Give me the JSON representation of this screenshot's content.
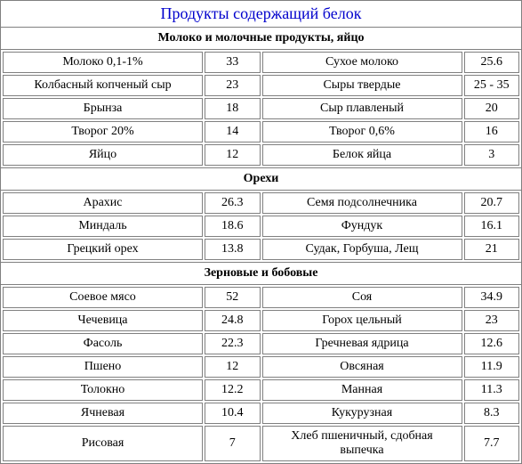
{
  "title": "Продукты содержащий белок",
  "sections": [
    {
      "header": "Молоко и молочные продукты, яйцо",
      "rows": [
        {
          "n1": "Молоко 0,1-1%",
          "v1": "33",
          "n2": "Сухое молоко",
          "v2": "25.6"
        },
        {
          "n1": "Колбасный копченый сыр",
          "v1": "23",
          "n2": "Сыры твердые",
          "v2": "25 - 35"
        },
        {
          "n1": "Брынза",
          "v1": "18",
          "n2": "Сыр плавленый",
          "v2": "20"
        },
        {
          "n1": "Творог 20%",
          "v1": "14",
          "n2": "Творог 0,6%",
          "v2": "16"
        },
        {
          "n1": "Яйцо",
          "v1": "12",
          "n2": "Белок яйца",
          "v2": "3"
        }
      ]
    },
    {
      "header": "Орехи",
      "rows": [
        {
          "n1": "Арахис",
          "v1": "26.3",
          "n2": "Семя подсолнечника",
          "v2": "20.7"
        },
        {
          "n1": "Миндаль",
          "v1": "18.6",
          "n2": "Фундук",
          "v2": "16.1"
        },
        {
          "n1": "Грецкий орех",
          "v1": "13.8",
          "n2": "Судак, Горбуша, Лещ",
          "v2": "21"
        }
      ]
    },
    {
      "header": "Зерновые и бобовые",
      "rows": [
        {
          "n1": "Соевое мясо",
          "v1": "52",
          "n2": "Соя",
          "v2": "34.9"
        },
        {
          "n1": "Чечевица",
          "v1": "24.8",
          "n2": "Горох цельный",
          "v2": "23"
        },
        {
          "n1": "Фасоль",
          "v1": "22.3",
          "n2": "Гречневая ядрица",
          "v2": "12.6"
        },
        {
          "n1": "Пшено",
          "v1": "12",
          "n2": "Овсяная",
          "v2": "11.9"
        },
        {
          "n1": "Толокно",
          "v1": "12.2",
          "n2": "Манная",
          "v2": "11.3"
        },
        {
          "n1": "Ячневая",
          "v1": "10.4",
          "n2": "Кукурузная",
          "v2": "8.3"
        },
        {
          "n1": "Рисовая",
          "v1": "7",
          "n2": "Хлеб пшеничный, сдобная выпечка",
          "v2": "7.7"
        }
      ]
    }
  ]
}
